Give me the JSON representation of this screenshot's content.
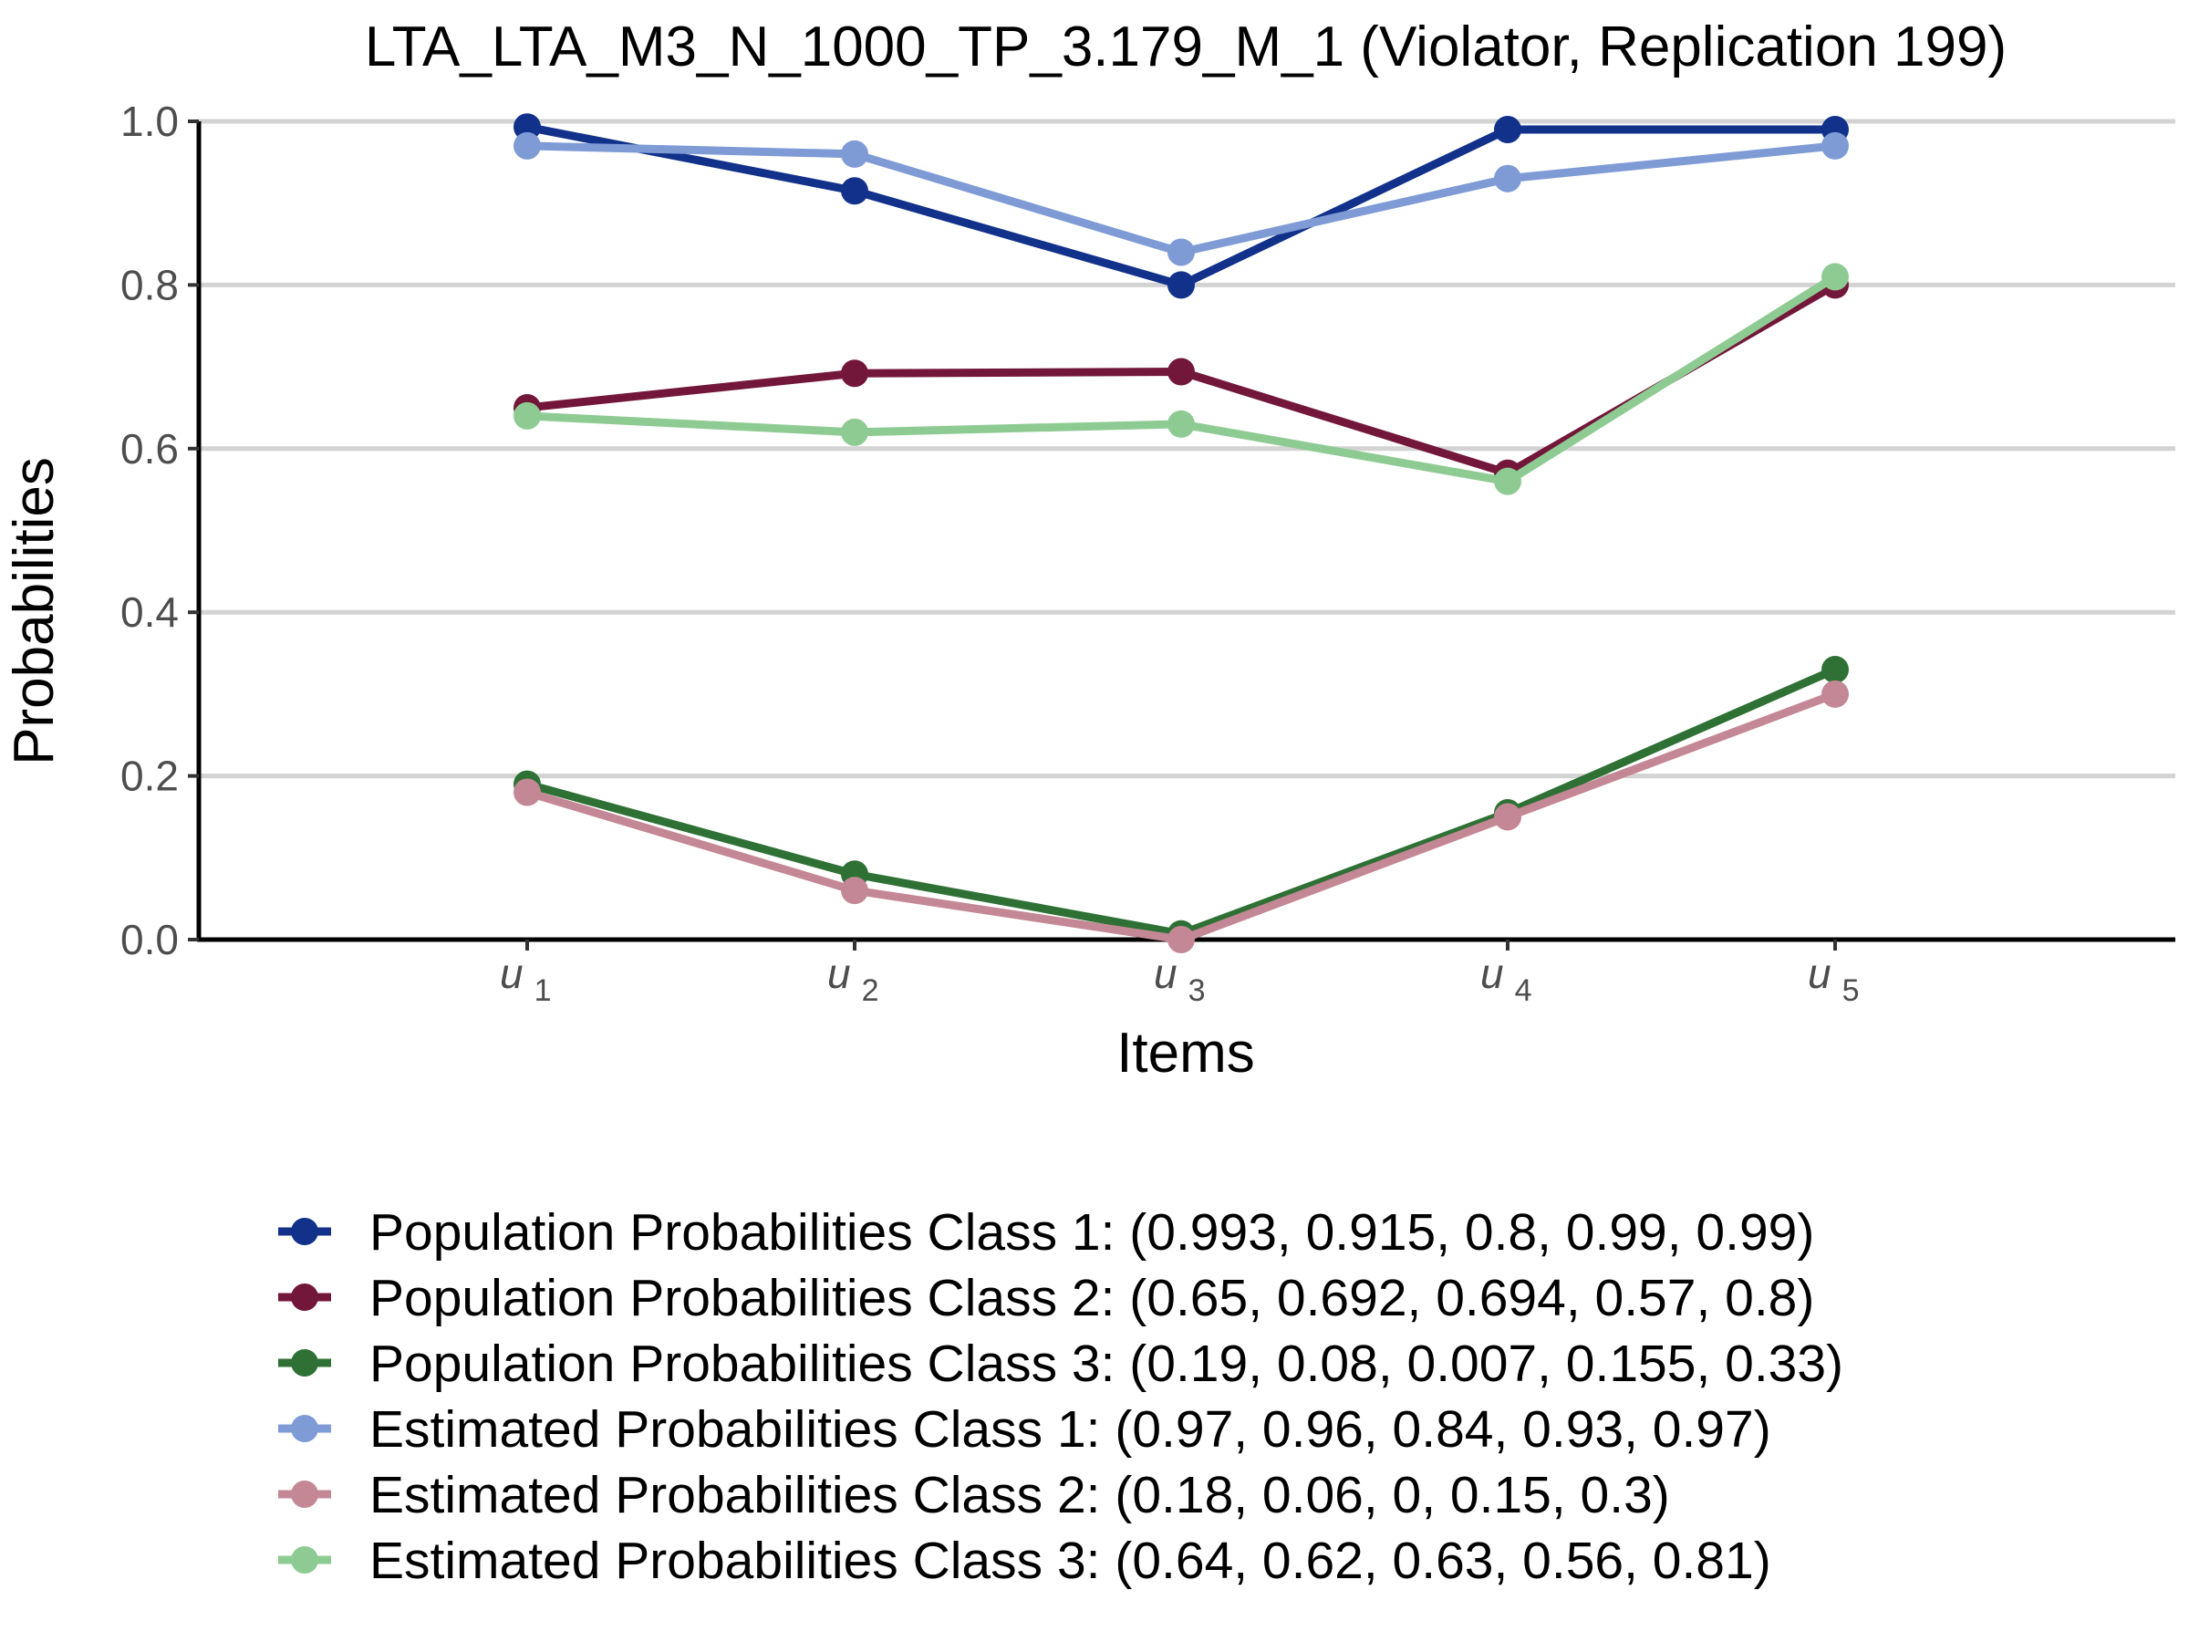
{
  "chart_data": {
    "type": "line",
    "title": "LTA_LTA_M3_N_1000_TP_3.179_M_1 (Violator, Replication 199)",
    "xlabel": "Items",
    "ylabel": "Probabilities",
    "categories": [
      {
        "main": "u",
        "sub": "1"
      },
      {
        "main": "u",
        "sub": "2"
      },
      {
        "main": "u",
        "sub": "3"
      },
      {
        "main": "u",
        "sub": "4"
      },
      {
        "main": "u",
        "sub": "5"
      }
    ],
    "ylim": [
      0,
      1
    ],
    "yticks": [
      "0.0",
      "0.2",
      "0.4",
      "0.6",
      "0.8",
      "1.0"
    ],
    "grid": "horizontal",
    "legend_position": "bottom",
    "series": [
      {
        "name": "Population Probabilities Class 1: (0.993, 0.915, 0.8, 0.99, 0.99)",
        "color": "#12318a",
        "values": [
          0.993,
          0.915,
          0.8,
          0.99,
          0.99
        ]
      },
      {
        "name": "Population Probabilities Class 2: (0.65, 0.692, 0.694, 0.57, 0.8)",
        "color": "#73173a",
        "values": [
          0.65,
          0.692,
          0.694,
          0.57,
          0.8
        ]
      },
      {
        "name": "Population Probabilities Class 3: (0.19, 0.08, 0.007, 0.155, 0.33)",
        "color": "#2f7135",
        "values": [
          0.19,
          0.08,
          0.007,
          0.155,
          0.33
        ]
      },
      {
        "name": "Estimated Probabilities Class 1: (0.97, 0.96, 0.84, 0.93, 0.97)",
        "color": "#7e9bd6",
        "values": [
          0.97,
          0.96,
          0.84,
          0.93,
          0.97
        ]
      },
      {
        "name": "Estimated Probabilities Class 2: (0.18, 0.06, 0, 0.15, 0.3)",
        "color": "#c48795",
        "values": [
          0.18,
          0.06,
          0,
          0.15,
          0.3
        ]
      },
      {
        "name": "Estimated Probabilities Class 3: (0.64, 0.62, 0.63, 0.56, 0.81)",
        "color": "#8ecb93",
        "values": [
          0.64,
          0.62,
          0.63,
          0.56,
          0.81
        ]
      }
    ]
  }
}
